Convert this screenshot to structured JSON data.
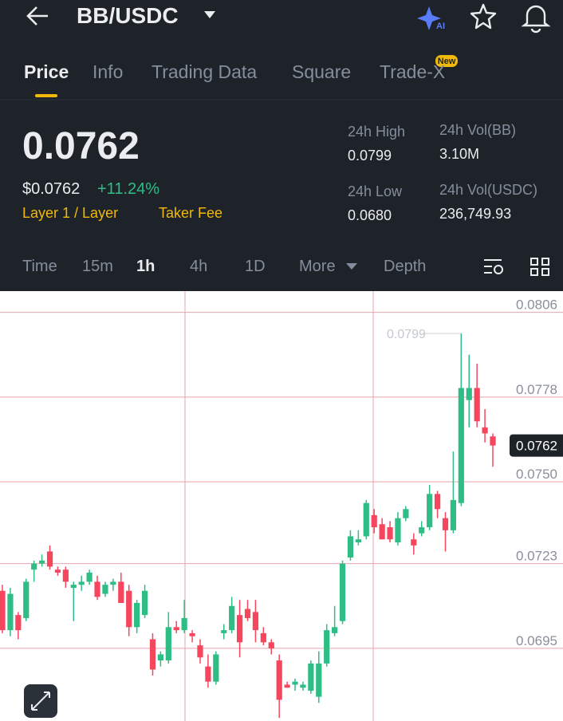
{
  "header": {
    "pair": "BB/USDC",
    "ai_badge": "AI"
  },
  "tabs": {
    "items": [
      "Price",
      "Info",
      "Trading Data",
      "Square",
      "Trade-X"
    ],
    "new_badge": "New"
  },
  "summary": {
    "price": "0.0762",
    "usd_price": "$0.0762",
    "change": "+11.24%",
    "tag": "Layer 1 / Layer",
    "fee": "Taker Fee",
    "stats": [
      {
        "label": "24h High",
        "value": "0.0799"
      },
      {
        "label": "24h Vol(BB)",
        "value": "3.10M"
      },
      {
        "label": "24h Low",
        "value": "0.0680"
      },
      {
        "label": "24h Vol(USDC)",
        "value": "236,749.93"
      }
    ]
  },
  "intervals": {
    "items": [
      "Time",
      "15m",
      "1h",
      "4h",
      "1D",
      "More",
      "Depth"
    ]
  },
  "chart_data": {
    "type": "candlestick",
    "up_color": "#2ebd85",
    "down_color": "#f6465d",
    "grid": true,
    "grid_color": "#e9a3ab",
    "ylim": [
      0.0671,
      0.0813
    ],
    "yticks": [
      0.0806,
      0.0778,
      {
        "value": 0.075,
        "label": "0.0750"
      },
      0.0723,
      0.0695
    ],
    "high_marker": 0.0799,
    "last_price": 0.0762,
    "open": [
      0.0714,
      0.0701,
      0.0706,
      0.0705,
      0.0721,
      0.0723,
      0.0727,
      0.0721,
      0.0721,
      0.0715,
      0.0716,
      0.0717,
      0.0717,
      0.0713,
      0.0716,
      0.0717,
      0.0714,
      0.0702,
      0.0706,
      0.0698,
      0.0691,
      0.0691,
      0.0702,
      0.0701,
      0.07,
      0.0696,
      0.0689,
      0.0684,
      0.07,
      0.0701,
      0.0706,
      0.0708,
      0.0707,
      0.07,
      0.0697,
      0.0691,
      0.0683,
      0.0683,
      0.0682,
      0.0681,
      0.0679,
      0.069,
      0.07,
      0.0704,
      0.0725,
      0.073,
      0.0732,
      0.0739,
      0.0736,
      0.0735,
      0.073,
      0.0738,
      0.0731,
      0.0733,
      0.0735,
      0.0746,
      0.0738,
      0.0734,
      0.0743,
      0.0777,
      0.0781,
      0.0768,
      0.0765
    ],
    "high": [
      0.0716,
      0.0715,
      0.0707,
      0.0718,
      0.0724,
      0.0726,
      0.0729,
      0.0722,
      0.0722,
      0.0717,
      0.0719,
      0.0721,
      0.0719,
      0.0717,
      0.0718,
      0.072,
      0.0716,
      0.0711,
      0.0716,
      0.07,
      0.0694,
      0.0707,
      0.0704,
      0.0711,
      0.0701,
      0.0698,
      0.0693,
      0.0694,
      0.0703,
      0.0712,
      0.0711,
      0.0711,
      0.0711,
      0.0702,
      0.0698,
      0.0693,
      0.0684,
      0.0685,
      0.0684,
      0.0691,
      0.0694,
      0.0703,
      0.0709,
      0.0724,
      0.0734,
      0.0734,
      0.0744,
      0.0741,
      0.0738,
      0.0737,
      0.074,
      0.0742,
      0.0733,
      0.0737,
      0.0749,
      0.0747,
      0.074,
      0.076,
      0.0799,
      0.0792,
      0.0789,
      0.0774,
      0.0766
    ],
    "low": [
      0.07,
      0.0699,
      0.0698,
      0.0704,
      0.0717,
      0.0722,
      0.0721,
      0.0719,
      0.0715,
      0.0704,
      0.0714,
      0.0716,
      0.0711,
      0.0712,
      0.0714,
      0.071,
      0.0699,
      0.07,
      0.0705,
      0.0686,
      0.0689,
      0.069,
      0.07,
      0.07,
      0.0697,
      0.069,
      0.0682,
      0.0683,
      0.0698,
      0.07,
      0.0692,
      0.0704,
      0.0697,
      0.0696,
      0.0693,
      0.0672,
      0.0682,
      0.0681,
      0.0681,
      0.068,
      0.0677,
      0.0689,
      0.0699,
      0.0703,
      0.0724,
      0.0729,
      0.0731,
      0.0733,
      0.0731,
      0.073,
      0.0729,
      0.0737,
      0.0726,
      0.0732,
      0.0734,
      0.0738,
      0.0727,
      0.0733,
      0.0742,
      0.0768,
      0.0768,
      0.0763,
      0.0755
    ],
    "close": [
      0.0701,
      0.0713,
      0.0701,
      0.0717,
      0.0723,
      0.0724,
      0.0722,
      0.072,
      0.0717,
      0.0716,
      0.0717,
      0.072,
      0.0712,
      0.0716,
      0.0717,
      0.071,
      0.0702,
      0.071,
      0.0714,
      0.0688,
      0.0693,
      0.0702,
      0.0701,
      0.0705,
      0.0699,
      0.0692,
      0.0684,
      0.0693,
      0.0701,
      0.0709,
      0.0697,
      0.0705,
      0.0701,
      0.0697,
      0.0695,
      0.0678,
      0.0682,
      0.0684,
      0.0683,
      0.069,
      0.069,
      0.0701,
      0.0702,
      0.0723,
      0.0732,
      0.0731,
      0.0743,
      0.0735,
      0.0731,
      0.0731,
      0.0738,
      0.0741,
      0.0729,
      0.0735,
      0.0746,
      0.0741,
      0.0734,
      0.0744,
      0.0781,
      0.0781,
      0.077,
      0.0766,
      0.0762
    ]
  }
}
